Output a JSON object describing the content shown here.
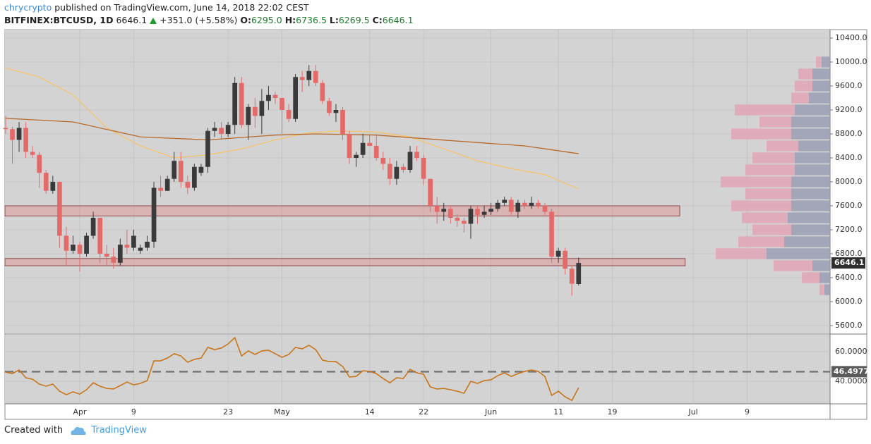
{
  "header": {
    "author": "chrycrypto",
    "published": " published on TradingView.com, June 14, 2018 22:02 CEST",
    "symbol": "BITFINEX:BTCUSD, 1D",
    "change": "+351.0 (+5.58%)",
    "open_key": "O:",
    "open": "6295.0",
    "high_key": "H:",
    "high": "6736.5",
    "low_key": "L:",
    "low": "6269.5",
    "close_key": "C:",
    "close": "6646.1"
  },
  "footer": {
    "created": "Created with",
    "brand": "TradingView"
  },
  "chart_data": {
    "type": "candlestick",
    "up_color": "#3a3a3a",
    "down_color": "#e46a6a",
    "grid": true,
    "open": [
      8900,
      8880,
      8700,
      8900,
      8500,
      8450,
      8150,
      7850,
      8000,
      7100,
      6850,
      6950,
      6800,
      7100,
      7400,
      6800,
      6750,
      6650,
      6950,
      6900,
      6850,
      6900,
      7000,
      7900,
      7850,
      8050,
      8350,
      8000,
      7900,
      8150,
      8250,
      8850,
      8900,
      8800,
      8950,
      9650,
      8950,
      9250,
      9100,
      9350,
      9450,
      9400,
      9200,
      9050,
      9750,
      9700,
      9850,
      9650,
      9350,
      9150,
      9200,
      8800,
      8400,
      8450,
      8650,
      8600,
      8400,
      8300,
      8050,
      8250,
      8200,
      8500,
      8400,
      8050,
      7600,
      7500,
      7550,
      7400,
      7350,
      7300,
      7550,
      7450,
      7500,
      7550,
      7650,
      7700,
      7500,
      7650,
      7600,
      7650,
      7600,
      7500,
      6750,
      6850,
      6550,
      6295
    ],
    "high": [
      9100,
      8920,
      9000,
      9000,
      8600,
      8500,
      8200,
      8100,
      8000,
      7250,
      7100,
      7000,
      7150,
      7500,
      7400,
      6950,
      6900,
      7050,
      7200,
      7200,
      6950,
      7100,
      8000,
      8100,
      8100,
      8500,
      8500,
      8100,
      8300,
      8300,
      8900,
      9000,
      9000,
      9000,
      9750,
      9750,
      9300,
      9400,
      9550,
      9600,
      9500,
      9400,
      9300,
      9800,
      9850,
      9950,
      9950,
      9700,
      9400,
      9300,
      9250,
      8850,
      8500,
      8800,
      8800,
      8800,
      8500,
      8400,
      8350,
      8300,
      8600,
      8600,
      8450,
      8050,
      7750,
      7650,
      7600,
      7450,
      7400,
      7600,
      7600,
      7600,
      7650,
      7700,
      7750,
      7750,
      7700,
      7700,
      7750,
      7700,
      7650,
      7550,
      6900,
      6900,
      6600,
      6736.5
    ],
    "low": [
      8800,
      8300,
      8500,
      8400,
      8400,
      7900,
      7800,
      7800,
      6900,
      6600,
      6800,
      6500,
      6750,
      7050,
      6650,
      6600,
      6550,
      6600,
      6800,
      6850,
      6800,
      6850,
      6900,
      7750,
      7850,
      8000,
      7900,
      7800,
      7850,
      8100,
      8150,
      8750,
      8700,
      8750,
      8800,
      8900,
      8700,
      8900,
      8800,
      9200,
      9300,
      8800,
      9000,
      9000,
      9500,
      9600,
      9600,
      9300,
      9100,
      9000,
      8700,
      8300,
      8250,
      8400,
      8600,
      8350,
      8200,
      7950,
      7950,
      8150,
      8150,
      8350,
      7950,
      7500,
      7300,
      7350,
      7300,
      7250,
      7150,
      7050,
      7300,
      7400,
      7450,
      7500,
      7600,
      7450,
      7400,
      7550,
      7550,
      7550,
      7450,
      6650,
      6650,
      6450,
      6100,
      6269.5
    ],
    "close": [
      8880,
      8700,
      8900,
      8500,
      8450,
      8150,
      7850,
      8000,
      7100,
      6850,
      6950,
      6800,
      7100,
      7400,
      6800,
      6750,
      6650,
      6950,
      6900,
      7100,
      6900,
      7000,
      7900,
      7850,
      8050,
      8350,
      8000,
      7900,
      8250,
      8250,
      8850,
      8900,
      8800,
      8950,
      9650,
      8950,
      9250,
      9100,
      9350,
      9450,
      9400,
      9200,
      9050,
      9750,
      9700,
      9850,
      9650,
      9350,
      9150,
      9200,
      8800,
      8400,
      8450,
      8650,
      8600,
      8400,
      8300,
      8050,
      8250,
      8200,
      8500,
      8400,
      8050,
      7600,
      7500,
      7550,
      7400,
      7350,
      7300,
      7550,
      7450,
      7500,
      7550,
      7650,
      7700,
      7500,
      7650,
      7600,
      7650,
      7600,
      7500,
      6750,
      6850,
      6550,
      6300,
      6646.1
    ],
    "xlim": [
      -0.1,
      122.3
    ],
    "xticks": [
      {
        "value": 11,
        "label": "Apr"
      },
      {
        "value": 19,
        "label": "9"
      },
      {
        "value": 33,
        "label": "23"
      },
      {
        "value": 41,
        "label": "May"
      },
      {
        "value": 54,
        "label": "14"
      },
      {
        "value": 62,
        "label": "22"
      },
      {
        "value": 72,
        "label": "Jun"
      },
      {
        "value": 82,
        "label": "11"
      },
      {
        "value": 90,
        "label": "19"
      },
      {
        "value": 102,
        "label": "Jul"
      },
      {
        "value": 110,
        "label": "9"
      }
    ],
    "ylim": [
      5471,
      10541
    ],
    "yticks": [
      {
        "value": 5600,
        "label": "5600.0"
      },
      {
        "value": 6000,
        "label": "6000.0"
      },
      {
        "value": 6400,
        "label": "6400.0"
      },
      {
        "value": 6800,
        "label": "6800.0"
      },
      {
        "value": 7200,
        "label": "7200.0"
      },
      {
        "value": 7600,
        "label": "7600.0"
      },
      {
        "value": 8000,
        "label": "8000.0"
      },
      {
        "value": 8400,
        "label": "8400.0"
      },
      {
        "value": 8800,
        "label": "8800.0"
      },
      {
        "value": 9200,
        "label": "9200.0"
      },
      {
        "value": 9600,
        "label": "9600.0"
      },
      {
        "value": 10000,
        "label": "10000.0"
      },
      {
        "value": 10400,
        "label": "10400.0"
      }
    ],
    "moving_averages": [
      {
        "color": "#f3c46e",
        "x": [
          0,
          5,
          10,
          15,
          20,
          25,
          30,
          35,
          40,
          45,
          50,
          55,
          60,
          65,
          70,
          75,
          80,
          85
        ],
        "values": [
          9900,
          9750,
          9450,
          8900,
          8600,
          8400,
          8450,
          8550,
          8700,
          8820,
          8850,
          8830,
          8750,
          8550,
          8350,
          8220,
          8120,
          7880
        ]
      },
      {
        "color": "#b8692a",
        "x": [
          0,
          10,
          20,
          30,
          40,
          46,
          55,
          67,
          77,
          85
        ],
        "values": [
          9060,
          9000,
          8750,
          8700,
          8780,
          8800,
          8780,
          8680,
          8600,
          8470
        ]
      }
    ],
    "zones": [
      {
        "bottom": 7430,
        "top": 7600,
        "end": 100
      },
      {
        "bottom": 6600,
        "top": 6720,
        "end": 100.8
      }
    ],
    "volume_profile": {
      "up_color": "#9a9cb4",
      "down_color": "#e2a5b5",
      "levels": [
        6200,
        6400,
        6600,
        6800,
        7000,
        7200,
        7400,
        7600,
        7800,
        8000,
        8200,
        8400,
        8600,
        8800,
        9000,
        9200,
        9400,
        9600,
        9800,
        10000
      ],
      "up": [
        8,
        15,
        25,
        90,
        65,
        55,
        60,
        55,
        55,
        55,
        50,
        50,
        45,
        55,
        55,
        50,
        30,
        25,
        25,
        12
      ],
      "down": [
        7,
        25,
        55,
        72,
        65,
        55,
        65,
        85,
        65,
        100,
        70,
        60,
        45,
        85,
        45,
        85,
        25,
        25,
        20,
        8
      ]
    },
    "rsi": {
      "color": "#c8761b",
      "ylim": [
        24.8,
        71.4
      ],
      "yticks": [
        {
          "value": 40,
          "label": "40.0000"
        },
        {
          "value": 60,
          "label": "60.0000"
        }
      ],
      "level": {
        "value": 46.4977,
        "label": "46.4977"
      },
      "values": [
        46.2,
        45.2,
        47.6,
        42.4,
        41.4,
        38.1,
        36.7,
        38.1,
        33.3,
        31.0,
        32.9,
        31.4,
        34.3,
        39.0,
        36.7,
        35.2,
        34.8,
        37.1,
        39.5,
        37.6,
        38.6,
        40.5,
        53.8,
        53.8,
        55.7,
        58.6,
        57.1,
        52.9,
        54.8,
        55.7,
        62.9,
        61.4,
        62.4,
        65.2,
        69.5,
        57.1,
        60.5,
        58.1,
        60.5,
        61.0,
        58.6,
        56.2,
        58.1,
        62.9,
        61.9,
        64.3,
        61.4,
        54.3,
        53.3,
        53.3,
        50.0,
        42.9,
        43.3,
        47.1,
        46.7,
        45.2,
        41.9,
        39.0,
        42.4,
        41.9,
        48.1,
        45.7,
        44.8,
        36.2,
        34.8,
        35.2,
        34.3,
        33.3,
        31.9,
        40.0,
        38.6,
        40.5,
        41.0,
        43.8,
        45.7,
        43.3,
        45.2,
        46.7,
        47.6,
        46.7,
        43.3,
        30.5,
        33.3,
        29.5,
        27.1,
        35.7
      ]
    }
  }
}
